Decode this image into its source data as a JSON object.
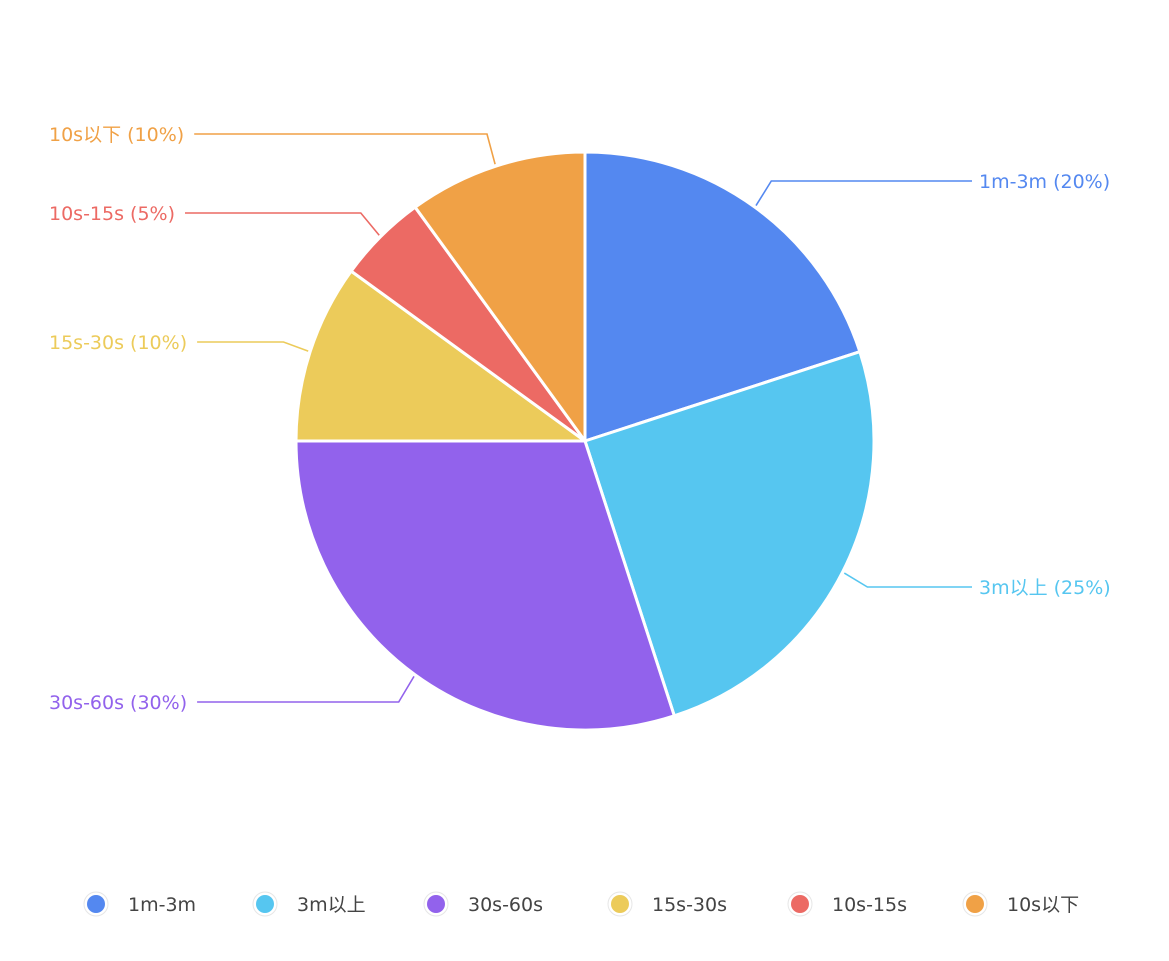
{
  "chart_data": {
    "type": "pie",
    "slices": [
      {
        "name": "1m-3m",
        "value": 20,
        "label": "1m-3m (20%)",
        "color": "#5488F0"
      },
      {
        "name": "3m以上",
        "value": 25,
        "label": "3m以上 (25%)",
        "color": "#56C6F0"
      },
      {
        "name": "30s-60s",
        "value": 30,
        "label": "30s-60s (30%)",
        "color": "#9262EC"
      },
      {
        "name": "15s-30s",
        "value": 10,
        "label": "15s-30s (10%)",
        "color": "#ECCB5A"
      },
      {
        "name": "10s-15s",
        "value": 5,
        "label": "10s-15s (5%)",
        "color": "#EC6A64"
      },
      {
        "name": "10s以下",
        "value": 10,
        "label": "10s以下 (10%)",
        "color": "#F0A146"
      }
    ],
    "legend": {
      "position": "bottom",
      "items": [
        "1m-3m",
        "3m以上",
        "30s-60s",
        "15s-30s",
        "10s-15s",
        "10s以下"
      ]
    }
  }
}
